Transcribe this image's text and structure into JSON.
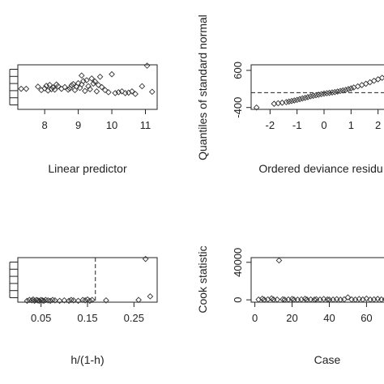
{
  "chart_data": [
    {
      "id": "linpred",
      "type": "scatter",
      "xlabel": "Linear predictor",
      "ylabel": "",
      "xlim": [
        7.2,
        11.35
      ],
      "ylim": [
        -2.6,
        2.6
      ],
      "xticks": [
        "8",
        "9",
        "10",
        "11"
      ],
      "yticks_count": 6,
      "x": [
        7.3,
        7.45,
        7.8,
        7.9,
        8.0,
        8.05,
        8.1,
        8.15,
        8.2,
        8.25,
        8.3,
        8.35,
        8.4,
        8.5,
        8.6,
        8.7,
        8.75,
        8.8,
        8.85,
        8.9,
        8.95,
        9.0,
        9.05,
        9.1,
        9.1,
        9.15,
        9.2,
        9.25,
        9.3,
        9.35,
        9.4,
        9.45,
        9.5,
        9.55,
        9.6,
        9.65,
        9.7,
        9.8,
        9.9,
        10.0,
        10.1,
        10.2,
        10.3,
        10.4,
        10.5,
        10.6,
        10.7,
        10.9,
        11.05,
        11.2
      ],
      "y": [
        -0.2,
        -0.2,
        0.05,
        -0.35,
        -0.15,
        0.15,
        -0.4,
        0.25,
        -0.25,
        -0.05,
        -0.3,
        0.3,
        0.1,
        -0.2,
        0.0,
        -0.3,
        -0.15,
        0.2,
        0.35,
        -0.35,
        0.05,
        0.45,
        -0.1,
        0.3,
        1.35,
        0.7,
        -0.45,
        0.8,
        0.1,
        -0.25,
        1.0,
        0.4,
        0.65,
        -0.5,
        0.25,
        1.2,
        0.0,
        -0.35,
        -0.6,
        1.5,
        -0.7,
        -0.6,
        -0.5,
        -0.7,
        -0.65,
        -0.5,
        -0.8,
        0.1,
        2.5,
        -0.55
      ]
    },
    {
      "id": "qq",
      "type": "scatter",
      "xlabel": "Ordered deviance residu",
      "ylabel": "Quantiles of standard normal",
      "xlim": [
        -2.7,
        2.4
      ],
      "ylim": [
        -450,
        750
      ],
      "xticks": [
        "-2",
        "-1",
        "0",
        "1",
        "2"
      ],
      "yticks": [
        "-400",
        "600"
      ],
      "ref_y": 0,
      "x": [
        -2.5,
        -1.85,
        -1.7,
        -1.55,
        -1.4,
        -1.3,
        -1.2,
        -1.1,
        -1.0,
        -0.9,
        -0.8,
        -0.7,
        -0.6,
        -0.5,
        -0.4,
        -0.3,
        -0.2,
        -0.1,
        0.0,
        0.1,
        0.2,
        0.3,
        0.4,
        0.5,
        0.6,
        0.7,
        0.8,
        0.9,
        1.0,
        1.1,
        1.25,
        1.4,
        1.55,
        1.7,
        1.85,
        2.0,
        2.15,
        2.3
      ],
      "y": [
        -400,
        -300,
        -285,
        -270,
        -255,
        -240,
        -225,
        -210,
        -195,
        -175,
        -155,
        -140,
        -120,
        -100,
        -85,
        -70,
        -55,
        -40,
        -25,
        -15,
        -5,
        5,
        15,
        30,
        45,
        60,
        75,
        95,
        115,
        140,
        170,
        205,
        240,
        280,
        320,
        360,
        400,
        430
      ]
    },
    {
      "id": "hat",
      "type": "scatter",
      "xlabel": "h/(1-h)",
      "ylabel": "",
      "xlim": [
        0.0,
        0.3
      ],
      "ylim": [
        0,
        1
      ],
      "xticks": [
        "0.05",
        "0.15",
        "0.25"
      ],
      "yticks_count": 6,
      "ref_x": 0.167,
      "x": [
        0.02,
        0.025,
        0.03,
        0.033,
        0.036,
        0.04,
        0.043,
        0.046,
        0.05,
        0.053,
        0.056,
        0.06,
        0.065,
        0.07,
        0.075,
        0.08,
        0.09,
        0.1,
        0.11,
        0.115,
        0.12,
        0.13,
        0.14,
        0.145,
        0.15,
        0.155,
        0.16,
        0.19,
        0.26,
        0.275,
        0.285
      ],
      "y": [
        0.03,
        0.05,
        0.04,
        0.06,
        0.03,
        0.05,
        0.04,
        0.03,
        0.05,
        0.04,
        0.03,
        0.05,
        0.04,
        0.03,
        0.05,
        0.04,
        0.03,
        0.04,
        0.03,
        0.05,
        0.04,
        0.03,
        0.05,
        0.04,
        0.06,
        0.03,
        0.05,
        0.04,
        0.05,
        0.97,
        0.13
      ]
    },
    {
      "id": "cook",
      "type": "scatter",
      "xlabel": "Case",
      "ylabel": "Cook statistic",
      "xlim": [
        -2,
        72
      ],
      "ylim": [
        -2500,
        45000
      ],
      "xticks": [
        "0",
        "20",
        "40",
        "60"
      ],
      "yticks": [
        "0",
        "40000"
      ],
      "x": [
        2,
        4,
        5,
        7,
        9,
        10,
        12,
        13,
        15,
        16,
        18,
        20,
        21,
        23,
        25,
        27,
        28,
        30,
        32,
        33,
        35,
        37,
        39,
        40,
        42,
        44,
        46,
        48,
        50,
        52,
        54,
        56,
        58,
        60,
        62,
        64,
        66,
        68,
        70
      ],
      "y": [
        300,
        1200,
        200,
        500,
        1500,
        400,
        300,
        42000,
        600,
        200,
        400,
        900,
        300,
        200,
        500,
        1100,
        300,
        400,
        200,
        600,
        300,
        900,
        400,
        200,
        300,
        700,
        200,
        500,
        2600,
        400,
        300,
        900,
        400,
        1300,
        300,
        500,
        1000,
        400,
        600
      ]
    }
  ]
}
